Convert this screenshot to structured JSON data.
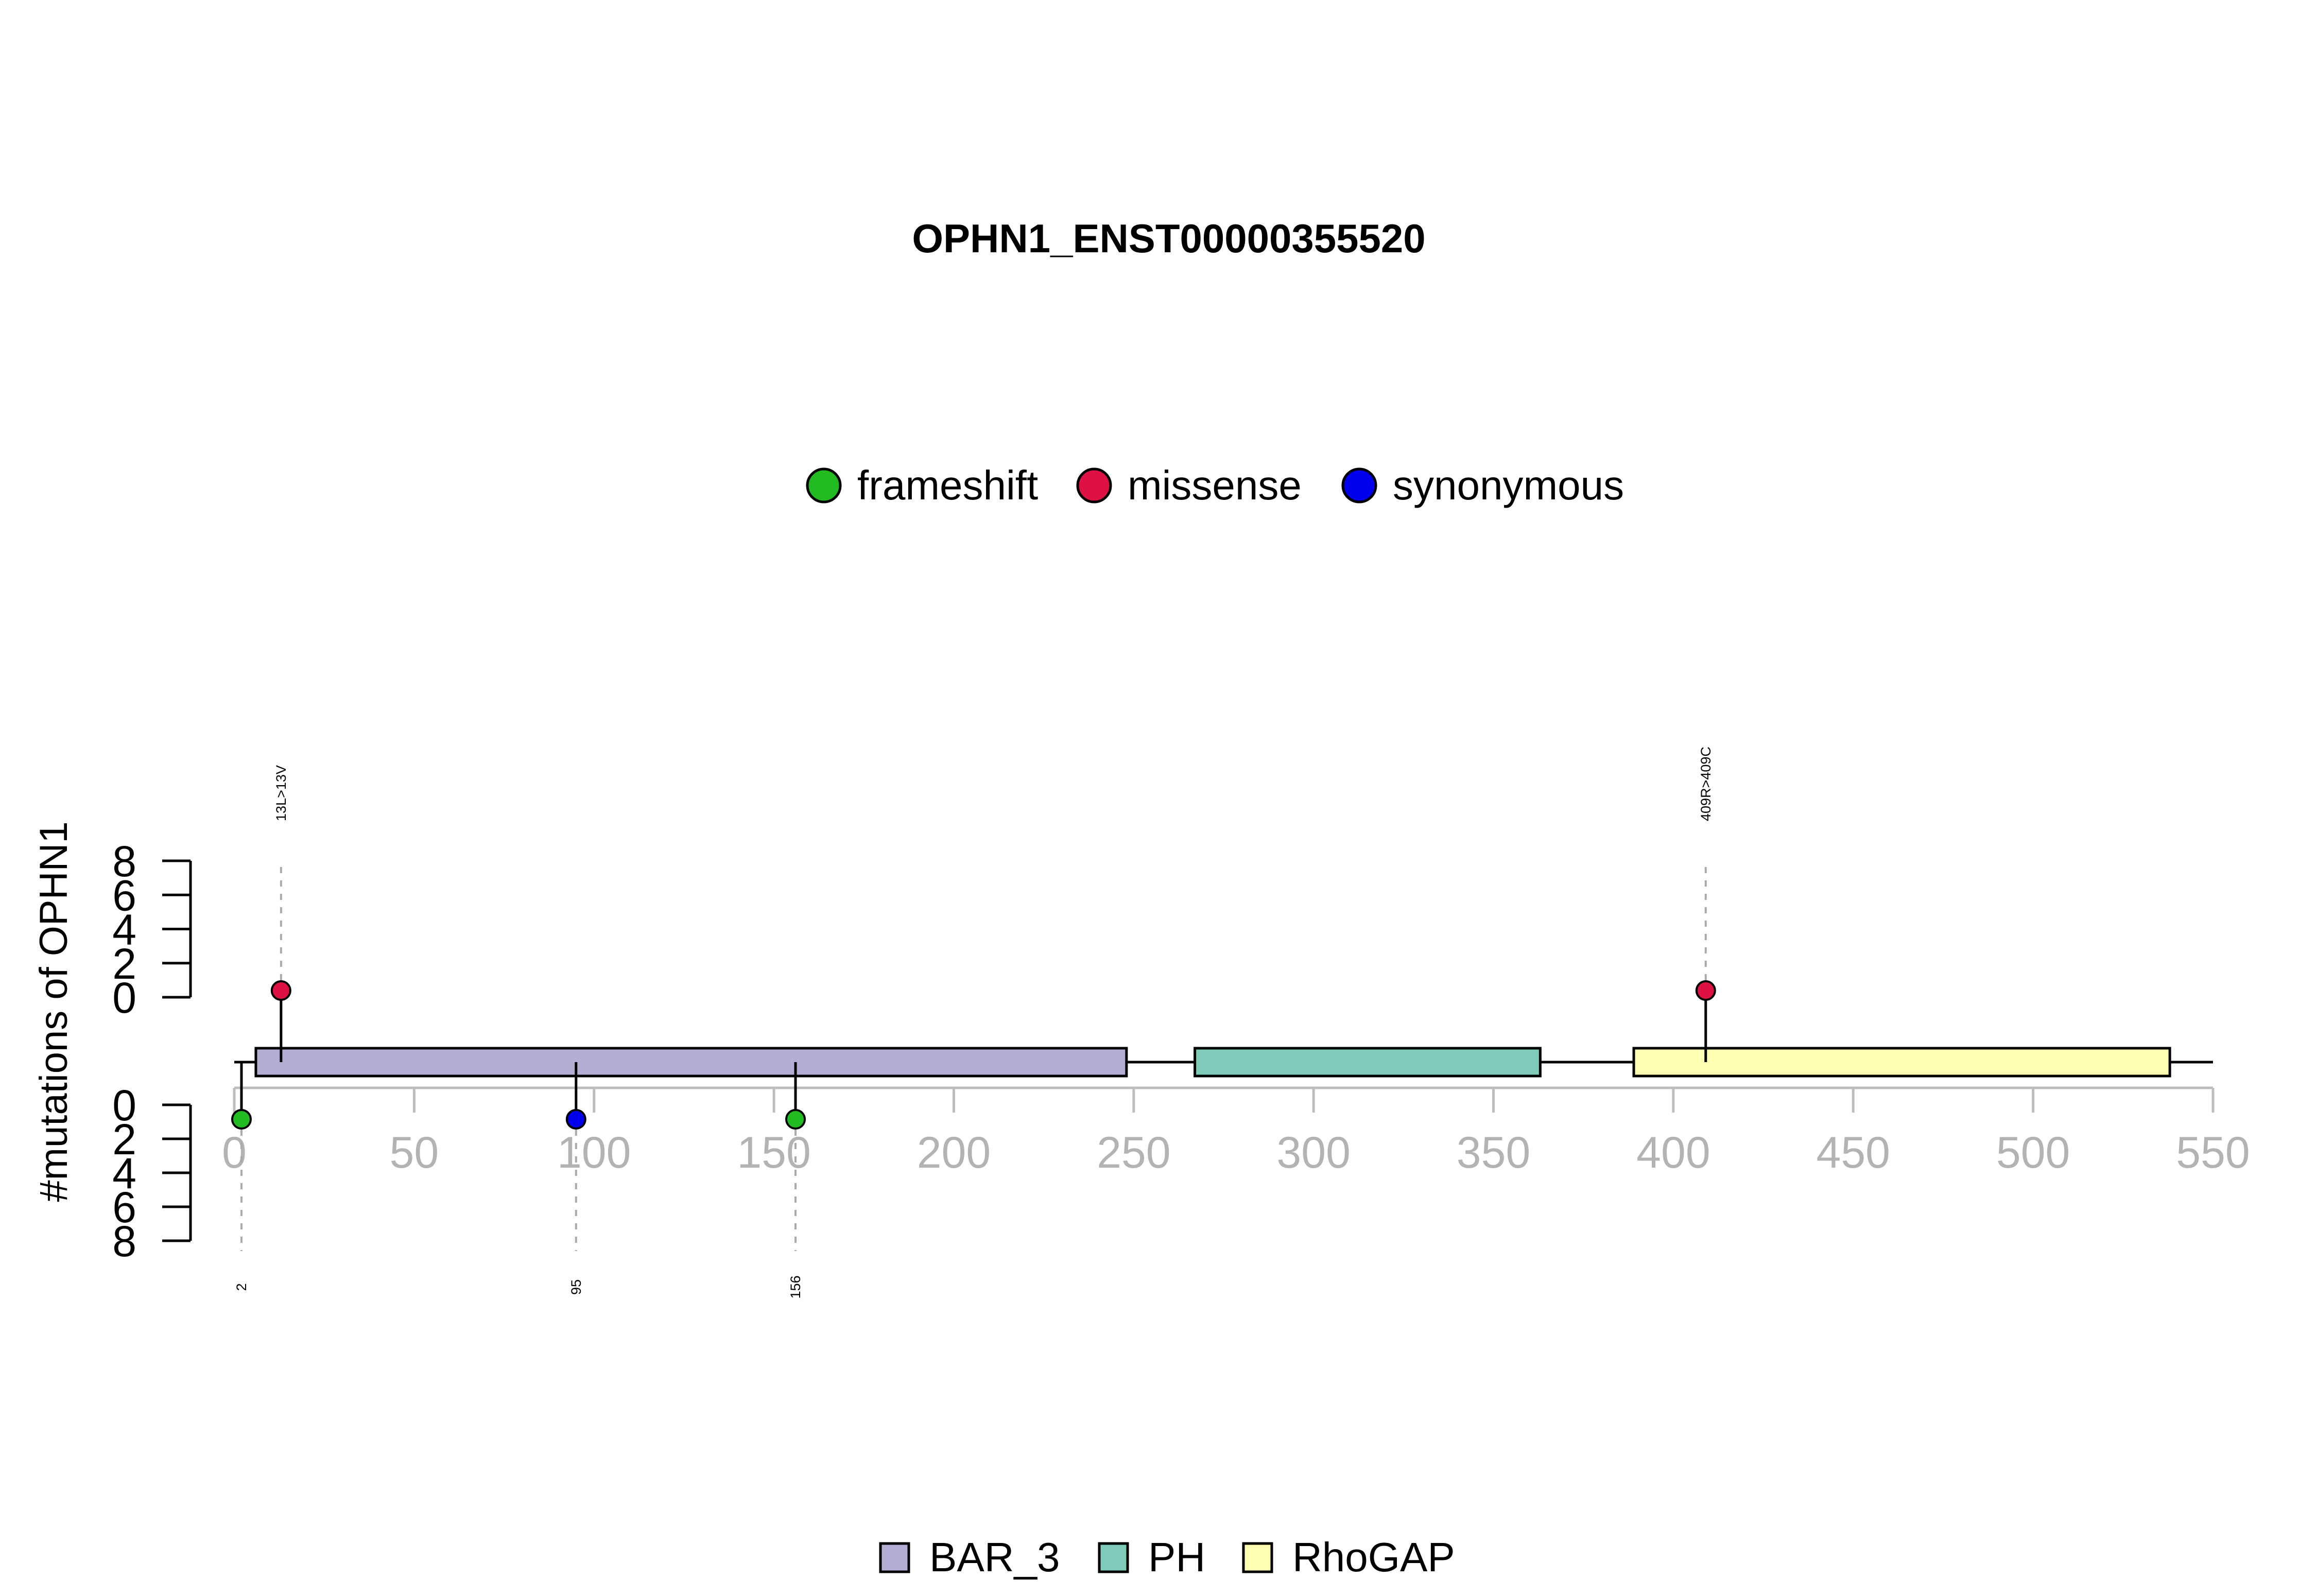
{
  "chart_data": {
    "type": "lollipop",
    "title": "OPHN1_ENST00000355520",
    "ylabel": "#mutations of OPHN1",
    "xlim": [
      0,
      550
    ],
    "x_ticks": [
      "0",
      "50",
      "100",
      "150",
      "200",
      "250",
      "300",
      "350",
      "400",
      "450",
      "500",
      "550"
    ],
    "y_ticks_top": [
      "8",
      "6",
      "4",
      "2",
      "0"
    ],
    "y_ticks_bottom": [
      "0",
      "2",
      "4",
      "6",
      "8"
    ],
    "mutation_legend": [
      {
        "label": "frameshift",
        "color": "#22bb22"
      },
      {
        "label": "missense",
        "color": "#dd1144"
      },
      {
        "label": "synonymous",
        "color": "#0000ee"
      }
    ],
    "domain_legend": [
      {
        "label": "BAR_3",
        "color": "#b3aed4"
      },
      {
        "label": "PH",
        "color": "#7fcbb9"
      },
      {
        "label": "RhoGAP",
        "color": "#ffffb4"
      }
    ],
    "domains": [
      {
        "name": "BAR_3",
        "start": 6,
        "end": 248,
        "color": "#b3aed4"
      },
      {
        "name": "PH",
        "start": 267,
        "end": 363,
        "color": "#7fcbb9"
      },
      {
        "name": "RhoGAP",
        "start": 389,
        "end": 538,
        "color": "#ffffb4"
      }
    ],
    "protein_length": 550,
    "mutations": [
      {
        "position": 13,
        "count": 1,
        "type": "missense",
        "side": "top",
        "label": "13L>13V"
      },
      {
        "position": 409,
        "count": 1,
        "type": "missense",
        "side": "top",
        "label": "409R>409C"
      },
      {
        "position": 2,
        "count": 1,
        "type": "frameshift",
        "side": "bottom",
        "label": "2"
      },
      {
        "position": 95,
        "count": 1,
        "type": "synonymous",
        "side": "bottom",
        "label": "95"
      },
      {
        "position": 156,
        "count": 1,
        "type": "frameshift",
        "side": "bottom",
        "label": "156"
      }
    ]
  }
}
